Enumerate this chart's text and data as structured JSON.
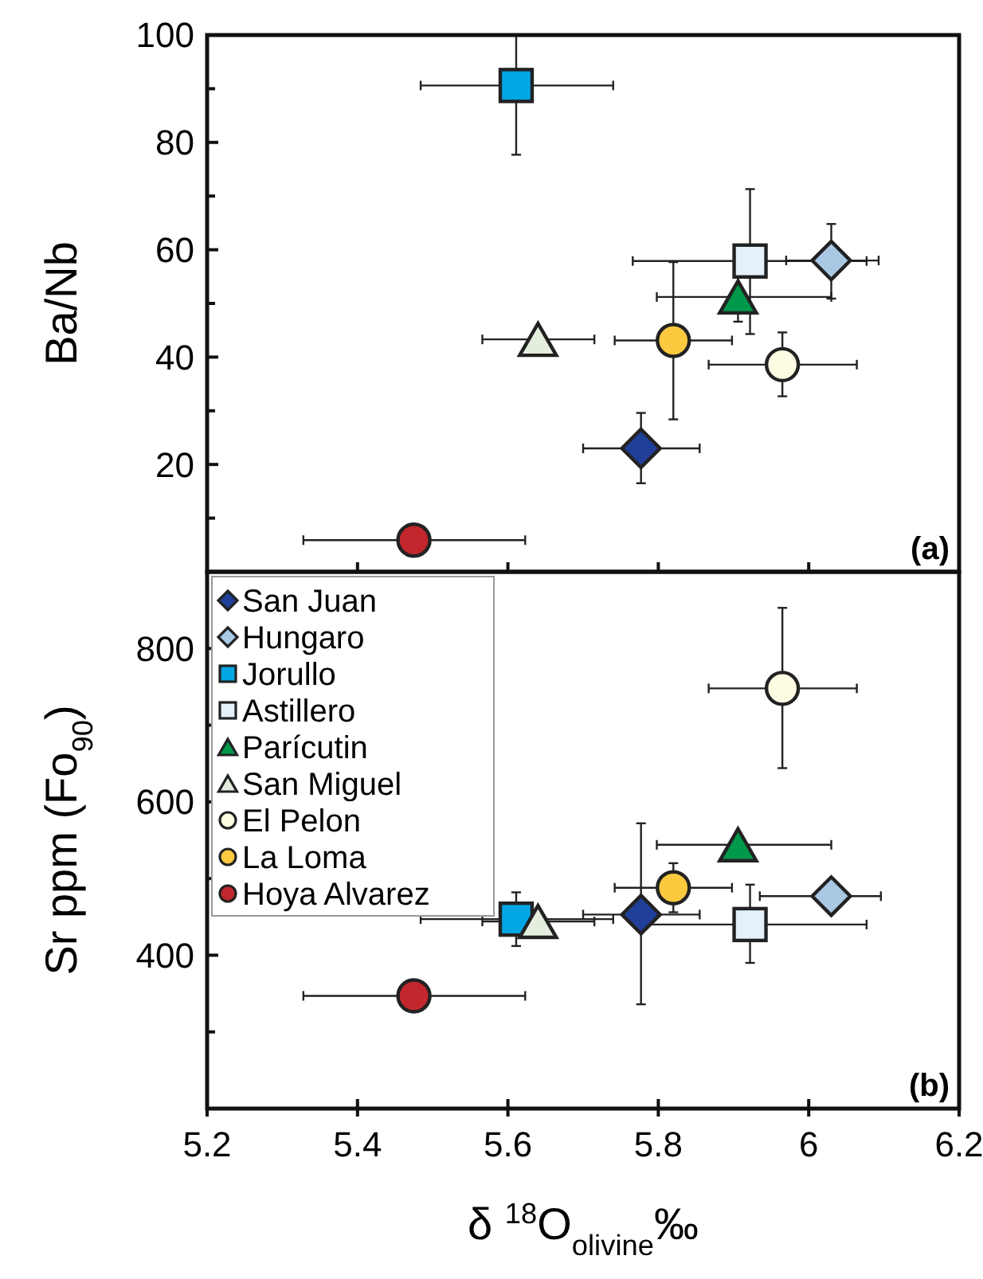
{
  "chart_data": [
    {
      "type": "scatter",
      "ylabel": "Ba/Nb",
      "xlim": [
        5.2,
        6.2
      ],
      "ylim": [
        0,
        100
      ],
      "xticks": [
        5.2,
        5.4,
        5.6,
        5.8,
        6,
        6.2
      ],
      "yticks": [
        {
          "value": 10,
          "label": null
        },
        20,
        {
          "value": 30,
          "label": null
        },
        40,
        {
          "value": 50,
          "label": null
        },
        60,
        {
          "value": 70,
          "label": null
        },
        80,
        {
          "value": 90,
          "label": null
        },
        100
      ],
      "tick_labels": "y",
      "annotations": [
        "(a)"
      ],
      "legend": false,
      "series": [
        {
          "color": "#1f3f99",
          "marker": "diamond",
          "x": [
            5.777
          ],
          "values": [
            23
          ],
          "errors": [
            [
              16.5,
              29.6
            ]
          ],
          "xerrors": [
            [
              5.7,
              5.855
            ]
          ]
        },
        {
          "color": "#a9c8e4",
          "marker": "diamond",
          "x": [
            6.03
          ],
          "values": [
            58
          ],
          "errors": [
            [
              50.9,
              64.8
            ]
          ],
          "xerrors": [
            [
              5.97,
              6.093
            ]
          ]
        },
        {
          "color": "#00a6e3",
          "marker": "square",
          "x": [
            5.611
          ],
          "values": [
            90.6
          ],
          "errors": [
            [
              77.7,
              100
            ]
          ],
          "xerrors": [
            [
              5.484,
              5.74
            ]
          ]
        },
        {
          "color": "#e4f1fb",
          "marker": "square",
          "x": [
            5.922
          ],
          "values": [
            57.9
          ],
          "errors": [
            [
              44.3,
              71.3
            ]
          ],
          "xerrors": [
            [
              5.766,
              6.077
            ]
          ]
        },
        {
          "color": "#00984a",
          "marker": "triangle",
          "x": [
            5.906
          ],
          "values": [
            51.2
          ],
          "errors": [
            [
              46.6,
              55.8
            ]
          ],
          "xerrors": [
            [
              5.798,
              6.03
            ]
          ]
        },
        {
          "color": "#e3eedf",
          "marker": "triangle",
          "x": [
            5.64
          ],
          "values": [
            43.3
          ],
          "errors": [
            null
          ],
          "xerrors": [
            [
              5.566,
              5.715
            ]
          ]
        },
        {
          "color": "#fefbe3",
          "marker": "circle",
          "x": [
            5.965
          ],
          "values": [
            38.6
          ],
          "errors": [
            [
              32.7,
              44.6
            ]
          ],
          "xerrors": [
            [
              5.867,
              6.064
            ]
          ]
        },
        {
          "color": "#fdc93f",
          "marker": "circle",
          "x": [
            5.82
          ],
          "values": [
            43.1
          ],
          "errors": [
            [
              28.4,
              57.7
            ]
          ],
          "xerrors": [
            [
              5.742,
              5.898
            ]
          ]
        },
        {
          "color": "#c1272d",
          "marker": "circle",
          "x": [
            5.475
          ],
          "values": [
            5.9
          ],
          "errors": [
            null
          ],
          "xerrors": [
            [
              5.328,
              5.623
            ]
          ]
        }
      ]
    },
    {
      "type": "scatter",
      "ylabel": "Sr ppm (Fo$_{90}$)",
      "xlabel": "δ $^{18}$O$_{olivine}$‰",
      "xlim": [
        5.2,
        6.2
      ],
      "ylim": [
        200,
        900
      ],
      "xticks": [
        5.2,
        5.4,
        5.6,
        5.8,
        6,
        6.2
      ],
      "yticks": [
        {
          "value": 300,
          "label": null
        },
        400,
        {
          "value": 500,
          "label": null
        },
        600,
        {
          "value": 700,
          "label": null
        },
        800
      ],
      "annotations": [
        "(b)"
      ],
      "legend": "top left",
      "series": [
        {
          "name": "San Juan",
          "color": "#1f3f99",
          "marker": "diamond",
          "x": [
            5.777
          ],
          "values": [
            453
          ],
          "errors": [
            [
              336,
              572
            ]
          ],
          "xerrors": [
            [
              5.7,
              5.855
            ]
          ]
        },
        {
          "name": "Hungaro",
          "color": "#a9c8e4",
          "marker": "diamond",
          "x": [
            6.03
          ],
          "values": [
            477
          ],
          "errors": [
            null
          ],
          "xerrors": [
            [
              5.935,
              6.096
            ]
          ]
        },
        {
          "name": "Jorullo",
          "color": "#00a6e3",
          "marker": "square",
          "x": [
            5.611
          ],
          "values": [
            447
          ],
          "errors": [
            [
              412,
              482
            ]
          ],
          "xerrors": [
            [
              5.484,
              5.74
            ]
          ]
        },
        {
          "name": "Astillero",
          "color": "#e4f1fb",
          "marker": "square",
          "x": [
            5.922
          ],
          "values": [
            440
          ],
          "errors": [
            [
              390,
              492
            ]
          ],
          "xerrors": [
            [
              5.77,
              6.077
            ]
          ]
        },
        {
          "name": "Parícutin",
          "color": "#00984a",
          "marker": "triangle",
          "x": [
            5.906
          ],
          "values": [
            544
          ],
          "errors": [
            null
          ],
          "xerrors": [
            [
              5.798,
              6.03
            ]
          ]
        },
        {
          "name": "San Miguel",
          "color": "#e3eedf",
          "marker": "triangle",
          "x": [
            5.64
          ],
          "values": [
            444
          ],
          "errors": [
            null
          ],
          "xerrors": [
            [
              5.566,
              5.715
            ]
          ]
        },
        {
          "name": "El Pelon",
          "color": "#fefbe3",
          "marker": "circle",
          "x": [
            5.965
          ],
          "values": [
            748
          ],
          "errors": [
            [
              644,
              853
            ]
          ],
          "xerrors": [
            [
              5.867,
              6.064
            ]
          ]
        },
        {
          "name": "La Loma",
          "color": "#fdc93f",
          "marker": "circle",
          "x": [
            5.82
          ],
          "values": [
            488
          ],
          "errors": [
            [
              456,
              520
            ]
          ],
          "xerrors": [
            [
              5.742,
              5.898
            ]
          ]
        },
        {
          "name": "Hoya Alvarez",
          "color": "#c1272d",
          "marker": "circle",
          "x": [
            5.475
          ],
          "values": [
            347
          ],
          "errors": [
            null
          ],
          "xerrors": [
            [
              5.328,
              5.623
            ]
          ]
        }
      ]
    }
  ]
}
